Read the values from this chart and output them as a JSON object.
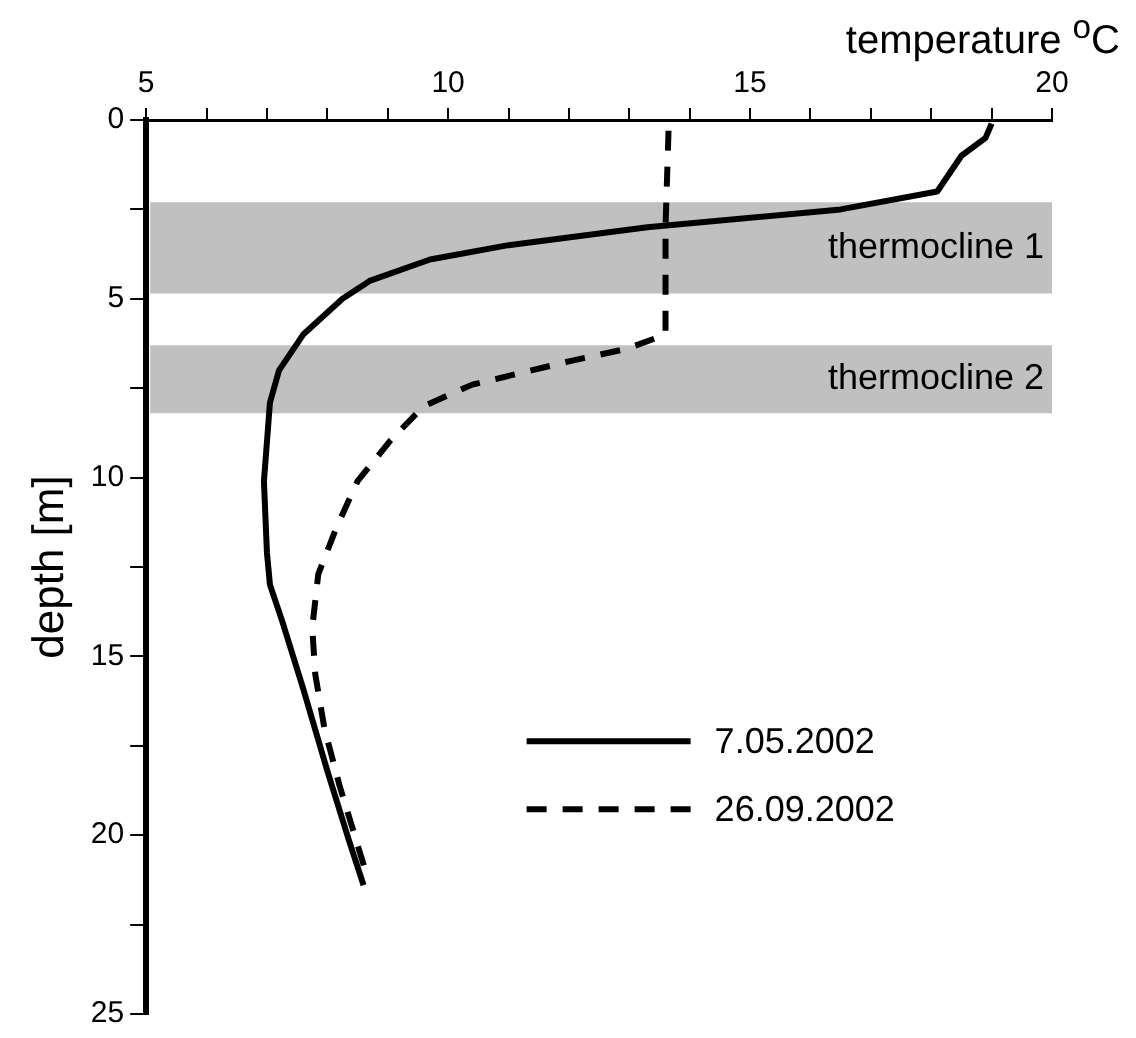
{
  "chart_data": {
    "type": "line",
    "xlabel": "temperature $^{o}$C",
    "ylabel": "depth [m]",
    "xlim": [
      5,
      20
    ],
    "xticks": [
      5,
      {
        "value": 6,
        "label": null
      },
      {
        "value": 7,
        "label": null
      },
      {
        "value": 8,
        "label": null
      },
      {
        "value": 9,
        "label": null
      },
      10,
      {
        "value": 11,
        "label": null
      },
      {
        "value": 12,
        "label": null
      },
      {
        "value": 13,
        "label": null
      },
      {
        "value": 14,
        "label": null
      },
      15,
      {
        "value": 16,
        "label": null
      },
      {
        "value": 17,
        "label": null
      },
      {
        "value": 18,
        "label": null
      },
      {
        "value": 19,
        "label": null
      },
      20
    ],
    "ylim": [
      25,
      0
    ],
    "yticks": [
      0,
      {
        "value": 2.5,
        "label": null
      },
      5,
      {
        "value": 7.5,
        "label": null
      },
      10,
      {
        "value": 12.5,
        "label": null
      },
      15,
      {
        "value": 17.5,
        "label": null
      },
      20,
      {
        "value": 22.5,
        "label": null
      },
      25
    ],
    "grid": false,
    "legend": "bottom right",
    "marker": "none",
    "bands": [
      {
        "axis": "y",
        "from": 2.3,
        "to": 4.85,
        "label": "thermocline 1",
        "color": "#c0c0c0"
      },
      {
        "axis": "y",
        "from": 6.3,
        "to": 8.2,
        "label": "thermocline 2",
        "color": "#c0c0c0"
      }
    ],
    "series": [
      {
        "name": "7.05.2002",
        "color": "#000000",
        "line_style": "solid",
        "x": [
          19.0,
          18.9,
          18.5,
          18.1,
          16.5,
          13.3,
          11.0,
          9.7,
          8.7,
          8.25,
          7.6,
          7.2,
          7.05,
          6.95,
          7.0,
          7.05,
          7.25,
          7.6,
          8.0,
          8.35,
          8.6
        ],
        "values": [
          0.1,
          0.5,
          1.0,
          2.0,
          2.5,
          3.0,
          3.5,
          3.9,
          4.5,
          5.0,
          6.0,
          7.0,
          7.9,
          10.1,
          12.1,
          13.0,
          14.0,
          15.9,
          18.2,
          20.1,
          21.4
        ]
      },
      {
        "name": "26.09.2002",
        "color": "#000000",
        "line_style": "dashed",
        "x": [
          13.65,
          13.6,
          13.6,
          12.95,
          12.0,
          10.4,
          9.6,
          9.05,
          8.5,
          8.15,
          7.85,
          7.75,
          7.8,
          7.95,
          8.2,
          8.65
        ],
        "values": [
          0.3,
          3.0,
          6.0,
          6.4,
          6.75,
          7.4,
          8.0,
          8.95,
          10.1,
          11.4,
          12.7,
          14.2,
          15.5,
          17.0,
          18.6,
          21.1
        ]
      }
    ]
  }
}
